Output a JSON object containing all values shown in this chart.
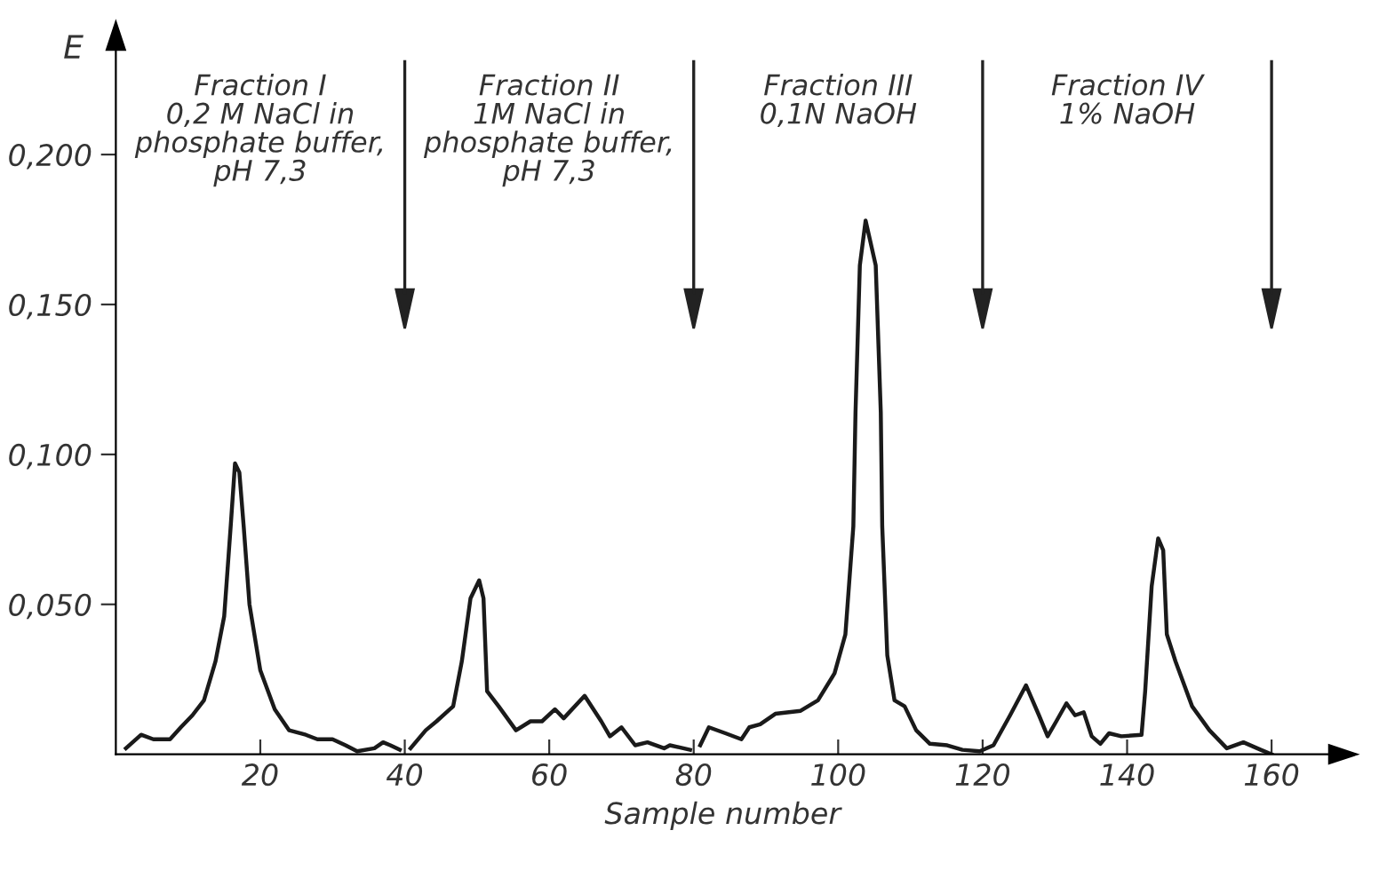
{
  "chart_data": {
    "type": "line",
    "xlabel": "Sample number",
    "ylabel": "E",
    "xlim": [
      0,
      168
    ],
    "ylim": [
      0,
      0.235
    ],
    "xticks": [
      20,
      40,
      60,
      80,
      100,
      120,
      140,
      160
    ],
    "yticks": [
      {
        "value": 0.05,
        "label": "0,050"
      },
      {
        "value": 0.1,
        "label": "0,100"
      },
      {
        "value": 0.15,
        "label": "0,150"
      },
      {
        "value": 0.2,
        "label": "0,200"
      }
    ],
    "grid": false,
    "marker": "none",
    "line_style": "solid",
    "series": [
      {
        "color": "#1a1a1a",
        "x": [
          1.4,
          3.5,
          5.2,
          7.5,
          9,
          10.6,
          12.2,
          13.8,
          15,
          15.9,
          16.5,
          17.1,
          17.7,
          18.5,
          20,
          22,
          24,
          26.3,
          27.9,
          30,
          31.8,
          33.4,
          35.8,
          37,
          38,
          39.3,
          40,
          40.8,
          42.9,
          44.4,
          46.7,
          47.9,
          49.1,
          50.3,
          50.9,
          51.4,
          53,
          55.4,
          57.4,
          59,
          60.8,
          62,
          64.9,
          67.2,
          68.4,
          70,
          71.9,
          73.6,
          75.9,
          76.7,
          79.5,
          80.2,
          80.9,
          82.1,
          84.4,
          86.6,
          87.7,
          89.2,
          91.3,
          94.8,
          97.2,
          99.5,
          101,
          102.1,
          102.4,
          103,
          103.8,
          105.2,
          105.9,
          106.1,
          106.8,
          107.8,
          109.2,
          110.8,
          112.7,
          115.1,
          117.2,
          119.6,
          121.5,
          123.8,
          126,
          127.8,
          129,
          130.2,
          131.6,
          132.8,
          134,
          135.1,
          136.3,
          137.5,
          139.2,
          142,
          142.5,
          143.4,
          144.3,
          145,
          145.5,
          146.7,
          149,
          151.4,
          153.8,
          156.1,
          158.5,
          160
        ],
        "values": [
          0.002,
          0.0065,
          0.005,
          0.005,
          0.009,
          0.013,
          0.018,
          0.031,
          0.046,
          0.076,
          0.097,
          0.094,
          0.076,
          0.05,
          0.028,
          0.015,
          0.008,
          0.0065,
          0.005,
          0.005,
          0.003,
          0.001,
          0.002,
          0.004,
          0.003,
          0.0015,
          null,
          0.002,
          0.008,
          0.011,
          0.016,
          0.031,
          0.052,
          0.058,
          0.052,
          0.021,
          0.016,
          0.008,
          0.011,
          0.011,
          0.015,
          0.012,
          0.0195,
          0.011,
          0.006,
          0.009,
          0.003,
          0.004,
          0.002,
          0.003,
          0.0015,
          null,
          0.003,
          0.009,
          0.007,
          0.005,
          0.009,
          0.01,
          0.0135,
          0.0145,
          0.018,
          0.027,
          0.04,
          0.076,
          0.114,
          0.163,
          0.178,
          0.163,
          0.114,
          0.076,
          0.033,
          0.018,
          0.016,
          0.008,
          0.0035,
          0.003,
          0.0015,
          0.001,
          0.003,
          0.013,
          0.023,
          0.013,
          0.006,
          0.011,
          0.017,
          0.013,
          0.014,
          0.006,
          0.0035,
          0.007,
          0.006,
          0.0065,
          0.021,
          0.056,
          0.072,
          0.068,
          0.04,
          0.031,
          0.016,
          0.008,
          0.002,
          0.004,
          0.0015,
          0
        ]
      }
    ],
    "ref_lines": [
      {
        "axis": "x",
        "value": 40,
        "label": null
      },
      {
        "axis": "x",
        "value": 80,
        "label": null
      },
      {
        "axis": "x",
        "value": 120,
        "label": null
      },
      {
        "axis": "x",
        "value": 160,
        "label": null
      }
    ],
    "annotations": [
      "Fraction I\n0,2 M NaCl in\nphosphate buffer,\npH 7,3",
      "Fraction II\n1M NaCl in\nphosphate buffer,\npH 7,3",
      "Fraction III\n0,1N NaOH",
      "Fraction IV\n1% NaOH"
    ]
  }
}
